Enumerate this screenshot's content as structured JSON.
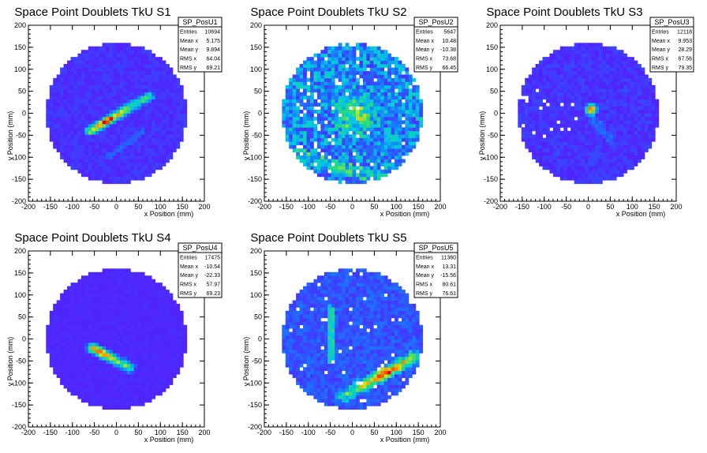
{
  "panels": [
    {
      "title": "Space Point Doublets TkU S1",
      "stats": {
        "name": "SP_PosU1",
        "rows": [
          {
            "label": "Entries",
            "value": "10694"
          },
          {
            "label": "Mean x",
            "value": "5.175"
          },
          {
            "label": "Mean y",
            "value": "9.894"
          },
          {
            "label": "RMS x",
            "value": "64.04"
          },
          {
            "label": "RMS y",
            "value": "69.21"
          }
        ]
      }
    },
    {
      "title": "Space Point Doublets TkU S2",
      "stats": {
        "name": "SP_PosU2",
        "rows": [
          {
            "label": "Entries",
            "value": "5647"
          },
          {
            "label": "Mean x",
            "value": "10.48"
          },
          {
            "label": "Mean y",
            "value": "-10.38"
          },
          {
            "label": "RMS x",
            "value": "73.68"
          },
          {
            "label": "RMS y",
            "value": "66.45"
          }
        ]
      }
    },
    {
      "title": "Space Point Doublets TkU S3",
      "stats": {
        "name": "SP_PosU3",
        "rows": [
          {
            "label": "Entries",
            "value": "12118"
          },
          {
            "label": "Mean x",
            "value": "9.953"
          },
          {
            "label": "Mean y",
            "value": "28.29"
          },
          {
            "label": "RMS x",
            "value": "67.56"
          },
          {
            "label": "RMS y",
            "value": "79.35"
          }
        ]
      }
    },
    {
      "title": "Space Point Doublets TkU S4",
      "stats": {
        "name": "SP_PosU4",
        "rows": [
          {
            "label": "Entries",
            "value": "17475"
          },
          {
            "label": "Mean x",
            "value": "-10.54"
          },
          {
            "label": "Mean y",
            "value": "-22.33"
          },
          {
            "label": "RMS x",
            "value": "57.97"
          },
          {
            "label": "RMS y",
            "value": "69.23"
          }
        ]
      }
    },
    {
      "title": "Space Point Doublets TkU S5",
      "stats": {
        "name": "SP_PosU5",
        "rows": [
          {
            "label": "Entries",
            "value": "11360"
          },
          {
            "label": "Mean x",
            "value": "13.31"
          },
          {
            "label": "Mean y",
            "value": "-15.56"
          },
          {
            "label": "RMS x",
            "value": "80.61"
          },
          {
            "label": "RMS y",
            "value": "76.61"
          }
        ]
      }
    }
  ],
  "chart_data": [
    {
      "type": "heatmap",
      "title": "Space Point Doublets TkU S1",
      "xlabel": "x Position (mm)",
      "ylabel": "y Position (mm)",
      "xlim": [
        -200,
        200
      ],
      "ylim": [
        -200,
        200
      ],
      "bin_width_mm": 8,
      "active_radius_mm": 160,
      "xticks": [
        -200,
        -150,
        -100,
        -50,
        0,
        50,
        100,
        150,
        200
      ],
      "yticks": [
        -200,
        -150,
        -100,
        -50,
        0,
        50,
        100,
        150,
        200
      ],
      "features": [
        {
          "kind": "band",
          "x1": -60,
          "y1": -40,
          "x2": 75,
          "y2": 40,
          "peak": "red"
        }
      ]
    },
    {
      "type": "heatmap",
      "title": "Space Point Doublets TkU S2",
      "xlabel": "x Position (mm)",
      "ylabel": "y Position (mm)",
      "xlim": [
        -200,
        200
      ],
      "ylim": [
        -200,
        200
      ],
      "bin_width_mm": 8,
      "active_radius_mm": 160,
      "xticks": [
        -200,
        -150,
        -100,
        -50,
        0,
        50,
        100,
        150,
        200
      ],
      "yticks": [
        -200,
        -150,
        -100,
        -50,
        0,
        50,
        100,
        150,
        200
      ],
      "features": [
        {
          "kind": "blob",
          "x": 10,
          "y": -10,
          "peak": "green"
        }
      ]
    },
    {
      "type": "heatmap",
      "title": "Space Point Doublets TkU S3",
      "xlabel": "x Position (mm)",
      "ylabel": "y Position (mm)",
      "xlim": [
        -200,
        200
      ],
      "ylim": [
        -200,
        200
      ],
      "bin_width_mm": 8,
      "active_radius_mm": 160,
      "xticks": [
        -200,
        -150,
        -100,
        -50,
        0,
        50,
        100,
        150,
        200
      ],
      "yticks": [
        -200,
        -150,
        -100,
        -50,
        0,
        50,
        100,
        150,
        200
      ],
      "features": [
        {
          "kind": "spot",
          "x": 8,
          "y": 10,
          "peak": "red"
        }
      ]
    },
    {
      "type": "heatmap",
      "title": "Space Point Doublets TkU S4",
      "xlabel": "x Position (mm)",
      "ylabel": "y Position (mm)",
      "xlim": [
        -200,
        200
      ],
      "ylim": [
        -200,
        200
      ],
      "bin_width_mm": 8,
      "active_radius_mm": 160,
      "xticks": [
        -200,
        -150,
        -100,
        -50,
        0,
        50,
        100,
        150,
        200
      ],
      "yticks": [
        -200,
        -150,
        -100,
        -50,
        0,
        50,
        100,
        150,
        200
      ],
      "features": [
        {
          "kind": "band",
          "x1": -55,
          "y1": -20,
          "x2": 30,
          "y2": -65,
          "peak": "red"
        }
      ]
    },
    {
      "type": "heatmap",
      "title": "Space Point Doublets TkU S5",
      "xlabel": "x Position (mm)",
      "ylabel": "y Position (mm)",
      "xlim": [
        -200,
        200
      ],
      "ylim": [
        -200,
        200
      ],
      "bin_width_mm": 8,
      "active_radius_mm": 160,
      "xticks": [
        -200,
        -150,
        -100,
        -50,
        0,
        50,
        100,
        150,
        200
      ],
      "yticks": [
        -200,
        -150,
        -100,
        -50,
        0,
        50,
        100,
        150,
        200
      ],
      "features": [
        {
          "kind": "band",
          "x1": -20,
          "y1": -130,
          "x2": 140,
          "y2": -40,
          "peak": "red"
        },
        {
          "kind": "band",
          "x1": -50,
          "y1": -50,
          "x2": -50,
          "y2": 70,
          "peak": "cyan"
        }
      ]
    }
  ]
}
